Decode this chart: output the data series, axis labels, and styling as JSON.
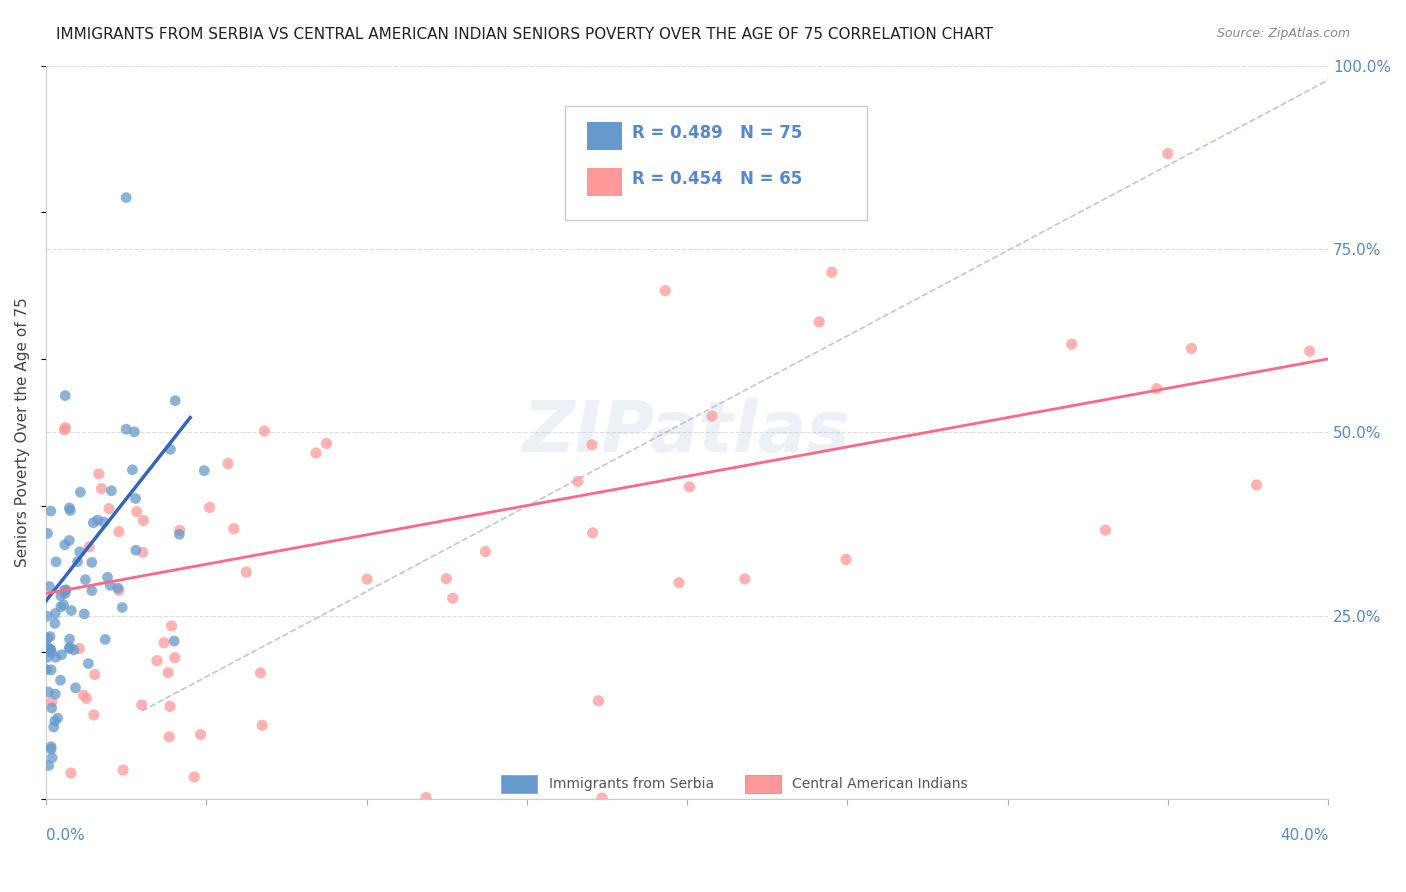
{
  "title": "IMMIGRANTS FROM SERBIA VS CENTRAL AMERICAN INDIAN SENIORS POVERTY OVER THE AGE OF 75 CORRELATION CHART",
  "source": "Source: ZipAtlas.com",
  "ylabel": "Seniors Poverty Over the Age of 75",
  "ytick_values": [
    0,
    0.25,
    0.5,
    0.75,
    1.0
  ],
  "ytick_labels": [
    "",
    "25.0%",
    "50.0%",
    "75.0%",
    "100.0%"
  ],
  "xlim": [
    0,
    0.4
  ],
  "ylim": [
    0,
    1.0
  ],
  "watermark": "ZIPatlas",
  "serbia_color": "#6699CC",
  "cai_color": "#FF9999",
  "serbia_R": 0.489,
  "serbia_N": 75,
  "cai_R": 0.454,
  "cai_N": 65,
  "trend_blue_color": "#3366BB",
  "trend_pink_color": "#FF6688",
  "ref_line_color": "#AAAACC",
  "axis_label_color": "#5588CC",
  "grid_color": "#DDDDDD"
}
